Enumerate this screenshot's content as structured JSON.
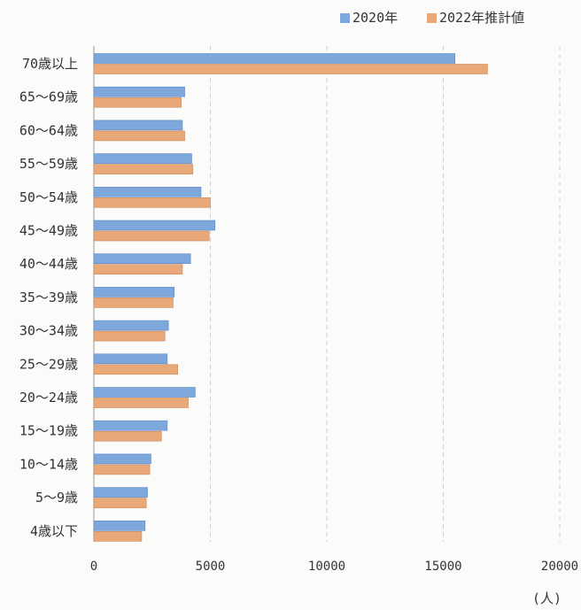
{
  "chart_data": {
    "type": "bar",
    "orientation": "horizontal",
    "categories": [
      "70歳以上",
      "65〜69歳",
      "60〜64歳",
      "55〜59歳",
      "50〜54歳",
      "45〜49歳",
      "40〜44歳",
      "35〜39歳",
      "30〜34歳",
      "25〜29歳",
      "20〜24歳",
      "15〜19歳",
      "10〜14歳",
      "5〜9歳",
      "4歳以下"
    ],
    "series": [
      {
        "name": "2020年",
        "color": "#7ea8dc",
        "values": [
          15500,
          3900,
          3800,
          4200,
          4600,
          5200,
          4150,
          3450,
          3200,
          3150,
          4350,
          3150,
          2450,
          2300,
          2200
        ]
      },
      {
        "name": "2022年推計値",
        "color": "#e8a878",
        "values": [
          16900,
          3750,
          3900,
          4250,
          5000,
          4950,
          3800,
          3400,
          3050,
          3600,
          4050,
          2900,
          2400,
          2250,
          2050
        ]
      }
    ],
    "xlim": [
      0,
      20000
    ],
    "xticks": [
      0,
      5000,
      10000,
      15000,
      20000
    ],
    "unit": "(人)",
    "legend_position": "top-right",
    "grid": "vertical dashed"
  }
}
